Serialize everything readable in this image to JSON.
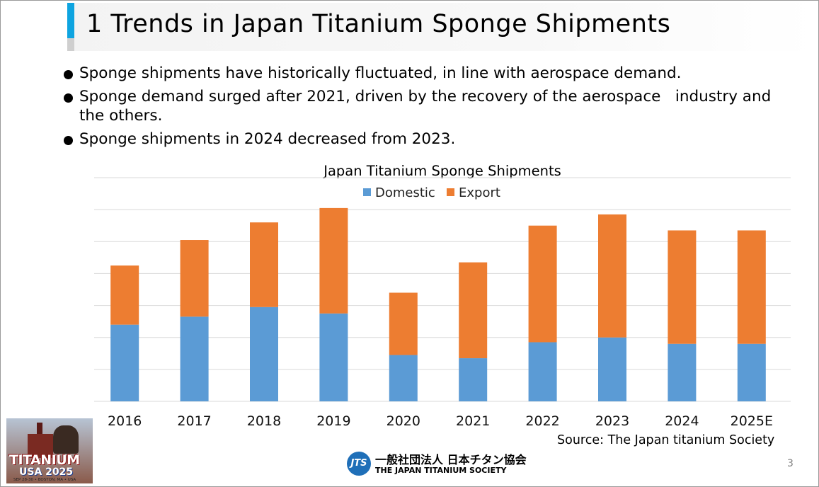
{
  "slide": {
    "title": "1 Trends in Japan Titanium Sponge Shipments",
    "bullets": [
      "Sponge shipments have historically fluctuated, in line with aerospace demand.",
      "Sponge demand surged after 2021, driven by the recovery of the aerospace   industry and the others.",
      "Sponge shipments in 2024 decreased from 2023."
    ],
    "source": "Source: The Japan titanium Society",
    "page_number": "3",
    "footer": {
      "logo_mark": "JTS",
      "org_jp": "一般社団法人 日本チタン協会",
      "org_en": "THE JAPAN TITANIUM SOCIETY"
    },
    "event_logo": {
      "name": "TITANIUM",
      "sub": "USA 2025",
      "dates": "SEP 28-30 • BOSTON, MA • USA"
    }
  },
  "colors": {
    "accent": "#0ea4e0",
    "domestic": "#5b9bd5",
    "export": "#ed7d31",
    "grid": "#d9d9d9"
  },
  "chart_data": {
    "type": "bar",
    "stacked": true,
    "title": "Japan Titanium Sponge Shipments",
    "categories": [
      "2016",
      "2017",
      "2018",
      "2019",
      "2020",
      "2021",
      "2022",
      "2023",
      "2024",
      "2025E"
    ],
    "series": [
      {
        "name": "Domestic",
        "values": [
          4.8,
          5.3,
          5.9,
          5.5,
          2.9,
          2.7,
          3.7,
          4.0,
          3.6,
          3.6
        ]
      },
      {
        "name": "Export",
        "values": [
          3.7,
          4.8,
          5.3,
          6.6,
          3.9,
          6.0,
          7.3,
          7.7,
          7.1,
          7.1
        ]
      }
    ],
    "ylim": [
      0,
      14
    ],
    "y_gridlines": [
      2,
      4,
      6,
      8,
      10,
      12,
      14
    ],
    "y_tick_labels_shown": false,
    "legend_position": "top-center",
    "xlabel": "",
    "ylabel": ""
  }
}
